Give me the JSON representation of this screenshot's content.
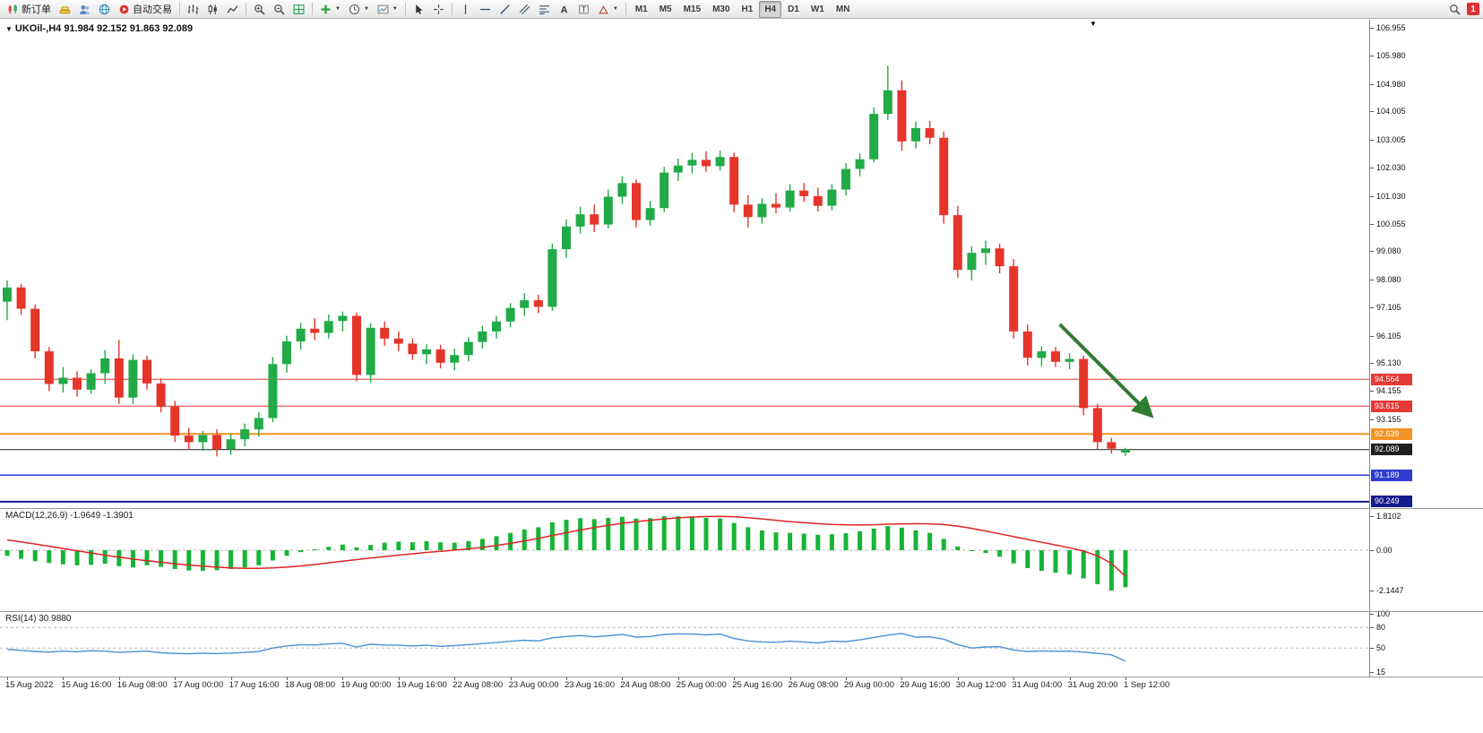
{
  "window": {
    "symbol_ohlc_label": "UKOil-,H4  91.984 92.152 91.863 92.089",
    "end_marker": "▼"
  },
  "toolbar": {
    "items": [
      {
        "type": "button",
        "name": "new-order",
        "icon": "new-order",
        "label": "新订单"
      },
      {
        "type": "icon",
        "name": "accounts",
        "icon": "gold"
      },
      {
        "type": "icon",
        "name": "profiles",
        "icon": "people"
      },
      {
        "type": "icon",
        "name": "market-watch",
        "icon": "globe"
      },
      {
        "type": "button",
        "name": "auto-trading",
        "icon": "autotrade",
        "label": "自动交易"
      },
      {
        "type": "sep"
      },
      {
        "type": "icon",
        "name": "bar-chart-mode",
        "icon": "chart-bars"
      },
      {
        "type": "icon",
        "name": "candle-chart-mode",
        "icon": "chart-candles"
      },
      {
        "type": "icon",
        "name": "line-chart-mode",
        "icon": "chart-line"
      },
      {
        "type": "sep"
      },
      {
        "type": "icon",
        "name": "zoom-in",
        "icon": "zoom-in"
      },
      {
        "type": "icon",
        "name": "zoom-out",
        "icon": "zoom-out"
      },
      {
        "type": "icon",
        "name": "tile-windows",
        "icon": "grid"
      },
      {
        "type": "sep"
      },
      {
        "type": "icon",
        "name": "indicators",
        "icon": "indicators",
        "caret": true
      },
      {
        "type": "icon",
        "name": "periods",
        "icon": "clock",
        "caret": true
      },
      {
        "type": "icon",
        "name": "templates",
        "icon": "template",
        "caret": true
      },
      {
        "type": "sep"
      },
      {
        "type": "icon",
        "name": "cursor-tool",
        "icon": "cursor"
      },
      {
        "type": "icon",
        "name": "crosshair-tool",
        "icon": "crosshair"
      },
      {
        "type": "sep"
      },
      {
        "type": "icon",
        "name": "vertical-line-tool",
        "icon": "vline"
      },
      {
        "type": "icon",
        "name": "horizontal-line-tool",
        "icon": "hline"
      },
      {
        "type": "icon",
        "name": "trendline-tool",
        "icon": "trendline"
      },
      {
        "type": "icon",
        "name": "channel-tool",
        "icon": "channel"
      },
      {
        "type": "icon",
        "name": "fibonacci-tool",
        "icon": "fibo"
      },
      {
        "type": "icon",
        "name": "text-tool",
        "icon": "text-a"
      },
      {
        "type": "icon",
        "name": "textbox-tool",
        "icon": "text-t"
      },
      {
        "type": "icon",
        "name": "shapes-tool",
        "icon": "shapes",
        "caret": true
      },
      {
        "type": "sep"
      }
    ],
    "timeframes": [
      {
        "label": "M1",
        "active": false
      },
      {
        "label": "M5",
        "active": false
      },
      {
        "label": "M15",
        "active": false
      },
      {
        "label": "M30",
        "active": false
      },
      {
        "label": "H1",
        "active": false
      },
      {
        "label": "H4",
        "active": true
      },
      {
        "label": "D1",
        "active": false
      },
      {
        "label": "W1",
        "active": false
      },
      {
        "label": "MN",
        "active": false
      }
    ],
    "right": {
      "search_icon": "search",
      "notification_badge": "1"
    }
  },
  "panels": {
    "macd_label": "MACD(12,26,9) -1.9649 -1.3901",
    "rsi_label": "RSI(14) 30.9880"
  },
  "time_axis": {
    "labels": [
      "15 Aug 2022",
      "15 Aug 16:00",
      "16 Aug 08:00",
      "17 Aug 00:00",
      "17 Aug 16:00",
      "18 Aug 08:00",
      "19 Aug 00:00",
      "19 Aug 16:00",
      "22 Aug 08:00",
      "23 Aug 00:00",
      "23 Aug 16:00",
      "24 Aug 08:00",
      "25 Aug 00:00",
      "25 Aug 16:00",
      "26 Aug 08:00",
      "29 Aug 00:00",
      "29 Aug 16:00",
      "30 Aug 12:00",
      "31 Aug 04:00",
      "31 Aug 20:00",
      "1 Sep 12:00"
    ]
  },
  "chart_data": {
    "type": "candlestick",
    "symbol": "UKOil-",
    "timeframe": "H4",
    "current": {
      "open": 91.984,
      "high": 92.152,
      "low": 91.863,
      "close": 92.089
    },
    "ylim": [
      90.0,
      107.0
    ],
    "price_axis_labels": [
      "106.955",
      "105.980",
      "104.980",
      "104.005",
      "103.005",
      "102.030",
      "101.030",
      "100.055",
      "99.080",
      "98.080",
      "97.105",
      "96.105",
      "95.130",
      "94.155",
      "93.155"
    ],
    "hlines": [
      {
        "price": 94.564,
        "label": "94.564",
        "color": "#e53935",
        "width": 1
      },
      {
        "price": 93.615,
        "label": "93.615",
        "color": "#e53935",
        "width": 1
      },
      {
        "price": 92.639,
        "label": "92.639",
        "color": "#f29423",
        "width": 2
      },
      {
        "price": 92.089,
        "label": "92.089",
        "color": "#1f1f1f",
        "width": 1
      },
      {
        "price": 91.189,
        "label": "91.189",
        "color": "#2f3cd0",
        "width": 1.5
      },
      {
        "price": 90.249,
        "label": "90.249",
        "color": "#141b8c",
        "width": 2
      }
    ],
    "arrow": {
      "from_candle": 75.3,
      "from_price": 96.5,
      "to_candle": 81.7,
      "to_price": 93.35
    },
    "colors": {
      "up": "#21aa47",
      "down": "#e5352b",
      "macd_bar": "#17b437",
      "macd_signal": "#e02424",
      "rsi_line": "#4a90d9",
      "arrow": "#2e7d32",
      "grid_dash": "#b9b9b9"
    },
    "candles": [
      [
        97.3,
        98.05,
        96.65,
        97.8
      ],
      [
        97.8,
        97.92,
        96.85,
        97.05
      ],
      [
        97.05,
        97.2,
        95.3,
        95.55
      ],
      [
        95.55,
        95.7,
        94.15,
        94.4
      ],
      [
        94.4,
        95.0,
        94.1,
        94.62
      ],
      [
        94.62,
        94.85,
        93.95,
        94.2
      ],
      [
        94.2,
        94.92,
        94.05,
        94.78
      ],
      [
        94.78,
        95.6,
        94.4,
        95.3
      ],
      [
        95.3,
        95.95,
        93.7,
        93.92
      ],
      [
        93.92,
        95.45,
        93.7,
        95.25
      ],
      [
        95.25,
        95.4,
        94.2,
        94.42
      ],
      [
        94.42,
        94.6,
        93.4,
        93.6
      ],
      [
        93.6,
        93.8,
        92.35,
        92.58
      ],
      [
        92.58,
        92.85,
        92.1,
        92.35
      ],
      [
        92.35,
        92.75,
        92.05,
        92.6
      ],
      [
        92.6,
        92.8,
        91.85,
        92.1
      ],
      [
        92.1,
        92.65,
        91.9,
        92.45
      ],
      [
        92.45,
        93.0,
        92.2,
        92.8
      ],
      [
        92.8,
        93.4,
        92.55,
        93.2
      ],
      [
        93.2,
        95.35,
        93.05,
        95.1
      ],
      [
        95.1,
        96.1,
        94.8,
        95.9
      ],
      [
        95.9,
        96.55,
        95.6,
        96.35
      ],
      [
        96.35,
        96.72,
        95.95,
        96.2
      ],
      [
        96.2,
        96.85,
        96.0,
        96.62
      ],
      [
        96.62,
        96.95,
        96.25,
        96.8
      ],
      [
        96.8,
        96.92,
        94.5,
        94.72
      ],
      [
        94.72,
        96.55,
        94.45,
        96.38
      ],
      [
        96.38,
        96.6,
        95.75,
        96.0
      ],
      [
        96.0,
        96.25,
        95.55,
        95.82
      ],
      [
        95.82,
        96.0,
        95.25,
        95.45
      ],
      [
        95.45,
        95.8,
        95.1,
        95.62
      ],
      [
        95.62,
        95.78,
        94.95,
        95.15
      ],
      [
        95.15,
        95.65,
        94.88,
        95.42
      ],
      [
        95.42,
        96.05,
        95.2,
        95.88
      ],
      [
        95.88,
        96.45,
        95.65,
        96.25
      ],
      [
        96.25,
        96.8,
        96.0,
        96.6
      ],
      [
        96.6,
        97.25,
        96.4,
        97.08
      ],
      [
        97.08,
        97.6,
        96.8,
        97.35
      ],
      [
        97.35,
        97.55,
        96.9,
        97.12
      ],
      [
        97.12,
        99.35,
        96.98,
        99.15
      ],
      [
        99.15,
        100.2,
        98.85,
        99.95
      ],
      [
        99.95,
        100.65,
        99.7,
        100.38
      ],
      [
        100.38,
        100.72,
        99.75,
        100.02
      ],
      [
        100.02,
        101.25,
        99.88,
        101.0
      ],
      [
        101.0,
        101.72,
        100.75,
        101.48
      ],
      [
        101.48,
        101.62,
        99.92,
        100.18
      ],
      [
        100.18,
        100.85,
        99.98,
        100.6
      ],
      [
        100.6,
        102.05,
        100.45,
        101.85
      ],
      [
        101.85,
        102.35,
        101.55,
        102.1
      ],
      [
        102.1,
        102.55,
        101.82,
        102.3
      ],
      [
        102.3,
        102.6,
        101.88,
        102.08
      ],
      [
        102.08,
        102.62,
        101.92,
        102.4
      ],
      [
        102.4,
        102.55,
        100.45,
        100.72
      ],
      [
        100.72,
        101.05,
        99.92,
        100.28
      ],
      [
        100.28,
        100.95,
        100.05,
        100.75
      ],
      [
        100.75,
        101.12,
        100.42,
        100.62
      ],
      [
        100.62,
        101.45,
        100.48,
        101.22
      ],
      [
        101.22,
        101.48,
        100.82,
        101.02
      ],
      [
        101.02,
        101.32,
        100.48,
        100.68
      ],
      [
        100.68,
        101.45,
        100.52,
        101.25
      ],
      [
        101.25,
        102.18,
        101.05,
        101.98
      ],
      [
        101.98,
        102.52,
        101.72,
        102.32
      ],
      [
        102.32,
        104.15,
        102.22,
        103.92
      ],
      [
        103.92,
        105.62,
        103.7,
        104.75
      ],
      [
        104.75,
        105.1,
        102.62,
        102.95
      ],
      [
        102.95,
        103.65,
        102.7,
        103.42
      ],
      [
        103.42,
        103.68,
        102.85,
        103.08
      ],
      [
        103.08,
        103.3,
        100.05,
        100.35
      ],
      [
        100.35,
        100.68,
        98.15,
        98.42
      ],
      [
        98.42,
        99.25,
        98.05,
        99.02
      ],
      [
        99.02,
        99.45,
        98.6,
        99.18
      ],
      [
        99.18,
        99.35,
        98.3,
        98.55
      ],
      [
        98.55,
        98.8,
        96.0,
        96.25
      ],
      [
        96.25,
        96.5,
        95.05,
        95.32
      ],
      [
        95.32,
        95.72,
        95.02,
        95.55
      ],
      [
        95.55,
        95.7,
        95.0,
        95.18
      ],
      [
        95.18,
        95.48,
        94.92,
        95.28
      ],
      [
        95.28,
        95.4,
        93.3,
        93.55
      ],
      [
        93.55,
        93.7,
        92.1,
        92.35
      ],
      [
        92.35,
        92.5,
        91.95,
        92.12
      ],
      [
        91.984,
        92.152,
        91.863,
        92.089
      ]
    ],
    "macd": {
      "title": "MACD(12,26,9)",
      "current": [
        -1.9649,
        -1.3901
      ],
      "axis_labels": [
        {
          "text": "1.8102",
          "value": 1.8102
        },
        {
          "text": "0.00",
          "value": 0
        },
        {
          "text": "-2.1447",
          "value": -2.1447
        }
      ],
      "histogram": [
        -0.3,
        -0.45,
        -0.58,
        -0.68,
        -0.75,
        -0.8,
        -0.78,
        -0.72,
        -0.85,
        -0.92,
        -0.8,
        -0.88,
        -1.0,
        -1.08,
        -1.1,
        -1.06,
        -1.0,
        -0.92,
        -0.8,
        -0.55,
        -0.3,
        -0.1,
        0.05,
        0.18,
        0.3,
        0.15,
        0.28,
        0.4,
        0.45,
        0.42,
        0.48,
        0.42,
        0.4,
        0.48,
        0.6,
        0.75,
        0.92,
        1.1,
        1.22,
        1.48,
        1.62,
        1.7,
        1.65,
        1.72,
        1.78,
        1.68,
        1.7,
        1.81,
        1.8,
        1.78,
        1.72,
        1.68,
        1.45,
        1.22,
        1.05,
        0.95,
        0.92,
        0.88,
        0.82,
        0.85,
        0.9,
        1.0,
        1.15,
        1.28,
        1.2,
        1.05,
        0.92,
        0.6,
        0.2,
        -0.05,
        -0.15,
        -0.35,
        -0.7,
        -0.95,
        -1.1,
        -1.2,
        -1.28,
        -1.5,
        -1.8,
        -2.1447,
        -1.9649
      ],
      "signal": [
        0.55,
        0.44,
        0.33,
        0.21,
        0.09,
        -0.03,
        -0.15,
        -0.26,
        -0.37,
        -0.47,
        -0.56,
        -0.64,
        -0.72,
        -0.79,
        -0.85,
        -0.9,
        -0.94,
        -0.96,
        -0.96,
        -0.94,
        -0.9,
        -0.84,
        -0.76,
        -0.67,
        -0.58,
        -0.5,
        -0.42,
        -0.34,
        -0.26,
        -0.19,
        -0.12,
        -0.06,
        0.0,
        0.07,
        0.15,
        0.25,
        0.36,
        0.49,
        0.63,
        0.78,
        0.93,
        1.07,
        1.2,
        1.32,
        1.43,
        1.52,
        1.59,
        1.66,
        1.72,
        1.76,
        1.79,
        1.8,
        1.78,
        1.73,
        1.66,
        1.59,
        1.52,
        1.46,
        1.41,
        1.37,
        1.35,
        1.34,
        1.35,
        1.38,
        1.4,
        1.41,
        1.4,
        1.36,
        1.28,
        1.16,
        1.02,
        0.87,
        0.72,
        0.57,
        0.42,
        0.28,
        0.13,
        -0.05,
        -0.3,
        -0.7,
        -1.3901
      ]
    },
    "rsi": {
      "title": "RSI(14)",
      "current": 30.988,
      "axis_labels": [
        {
          "text": "100",
          "value": 100
        },
        {
          "text": "80",
          "value": 80
        },
        {
          "text": "50",
          "value": 50
        },
        {
          "text": "15",
          "value": 15
        }
      ],
      "levels": [
        80,
        50
      ],
      "values": [
        48,
        46.5,
        45,
        44,
        45.5,
        44.5,
        46,
        45.5,
        43.5,
        44.5,
        45.5,
        43,
        42,
        41.5,
        42.5,
        41.8,
        42.5,
        43.5,
        45,
        50,
        53,
        55,
        54.5,
        56,
        57,
        51.5,
        55.5,
        54.5,
        54,
        53,
        54,
        52.5,
        53.5,
        55,
        56.5,
        58,
        60,
        61.5,
        60.5,
        65,
        67,
        68.5,
        66.5,
        68,
        70,
        66,
        67,
        70,
        71,
        70.5,
        69.5,
        70.5,
        64,
        60.5,
        59,
        58.5,
        60,
        59,
        57.5,
        60,
        59.5,
        62,
        65.5,
        69,
        71.5,
        66,
        66.5,
        63,
        55,
        50,
        51.5,
        52,
        47,
        45,
        45.8,
        45.2,
        45.5,
        44,
        42,
        40,
        30.99
      ]
    }
  }
}
